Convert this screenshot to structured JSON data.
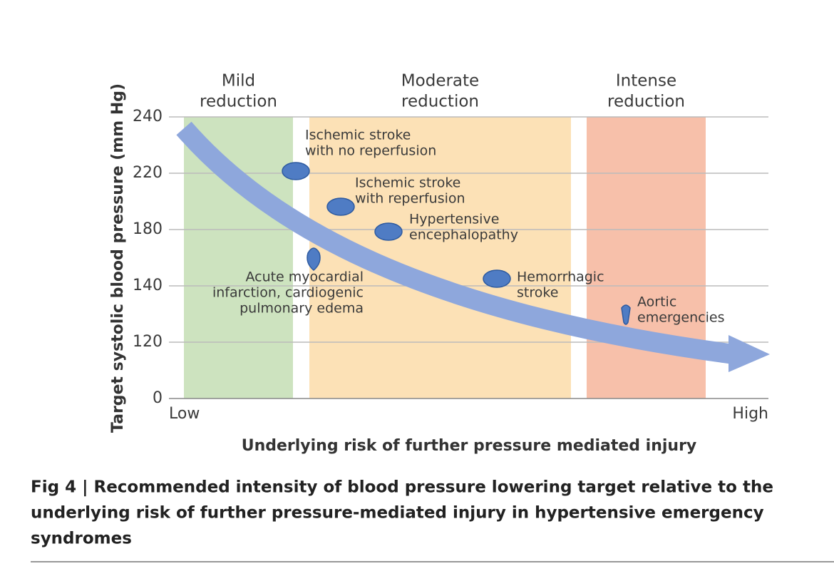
{
  "chart_data": {
    "type": "diagram",
    "y_label": "Target systolic blood pressure (mm Hg)",
    "x_label": "Underlying risk of further pressure mediated injury",
    "x_low": "Low",
    "x_high": "High",
    "yticks": [
      0,
      120,
      140,
      180,
      220,
      240
    ],
    "bands": [
      {
        "label": [
          "Mild",
          "reduction"
        ],
        "color": "#cde3bf"
      },
      {
        "label": [
          "Moderate",
          "reduction"
        ],
        "color": "#fce1b6"
      },
      {
        "label": [
          "Intense",
          "reduction"
        ],
        "color": "#f7c0aa"
      }
    ],
    "arrow_color": "#8ea7dc",
    "notes": [
      [
        "Ischemic stroke",
        "with no reperfusion"
      ],
      [
        "Ischemic stroke",
        "with reperfusion"
      ],
      [
        "Hypertensive",
        "encephalopathy"
      ],
      [
        "Acute myocardial",
        "infarction, cardiogenic",
        "pulmonary edema"
      ],
      [
        "Hemorrhagic",
        "stroke"
      ],
      [
        "Aortic",
        "emergencies"
      ]
    ],
    "caption": [
      "Fig 4 | Recommended intensity of blood pressure lowering target relative to the",
      "underlying risk of further pressure-mediated injury in hypertensive emergency",
      "syndromes"
    ]
  }
}
